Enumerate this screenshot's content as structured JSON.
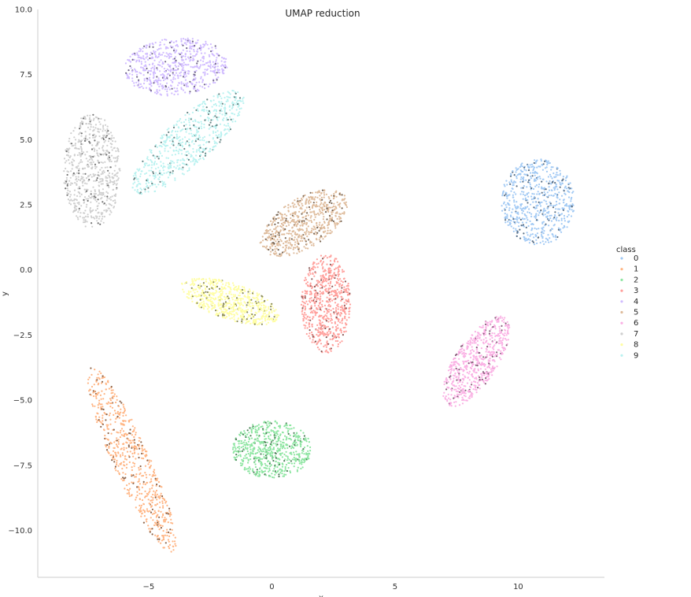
{
  "chart_data": {
    "type": "scatter",
    "title": "UMAP reduction",
    "xlabel": "x",
    "ylabel": "y",
    "xlim": [
      -9.5,
      13.5
    ],
    "ylim": [
      -11.8,
      10.0
    ],
    "x_ticks": [
      -5,
      0,
      5,
      10
    ],
    "y_ticks": [
      10.0,
      7.5,
      5.0,
      2.5,
      0.0,
      -2.5,
      -5.0,
      -7.5,
      -10.0
    ],
    "grid": false,
    "legend_position": "right",
    "legend_title": "class",
    "series": [
      {
        "name": "0",
        "color": "#a1c9f4",
        "cluster": {
          "center": [
            10.8,
            2.6
          ],
          "radii": [
            1.5,
            1.65
          ],
          "angle": 0
        }
      },
      {
        "name": "1",
        "color": "#ffb482",
        "cluster": {
          "center": [
            -5.7,
            -7.3
          ],
          "radii": [
            0.75,
            3.9
          ],
          "angle": -24
        }
      },
      {
        "name": "2",
        "color": "#8de5a1",
        "cluster": {
          "center": [
            0.0,
            -6.9
          ],
          "radii": [
            1.6,
            1.1
          ],
          "angle": 0
        }
      },
      {
        "name": "3",
        "color": "#ff9f9b",
        "cluster": {
          "center": [
            2.2,
            -1.3
          ],
          "radii": [
            1.0,
            1.9
          ],
          "angle": 0
        }
      },
      {
        "name": "4",
        "color": "#d0bbff",
        "cluster": {
          "center": [
            -3.9,
            7.8
          ],
          "radii": [
            2.1,
            1.1
          ],
          "angle": -5
        }
      },
      {
        "name": "5",
        "color": "#debb9b",
        "cluster": {
          "center": [
            1.3,
            1.8
          ],
          "radii": [
            2.0,
            0.95
          ],
          "angle": -32
        }
      },
      {
        "name": "6",
        "color": "#fab0e4",
        "cluster": {
          "center": [
            8.3,
            -3.5
          ],
          "radii": [
            0.85,
            2.0
          ],
          "angle": 33
        }
      },
      {
        "name": "7",
        "color": "#cfcfcf",
        "cluster": {
          "center": [
            -7.3,
            3.8
          ],
          "radii": [
            1.15,
            2.2
          ],
          "angle": 0
        }
      },
      {
        "name": "8",
        "color": "#fffea3",
        "cluster": {
          "center": [
            -1.7,
            -1.2
          ],
          "radii": [
            2.1,
            0.7
          ],
          "angle": 18
        }
      },
      {
        "name": "9",
        "color": "#b9f2f0",
        "cluster": {
          "center": [
            -3.4,
            4.9
          ],
          "radii": [
            0.95,
            2.8
          ],
          "angle": 48
        }
      }
    ]
  }
}
